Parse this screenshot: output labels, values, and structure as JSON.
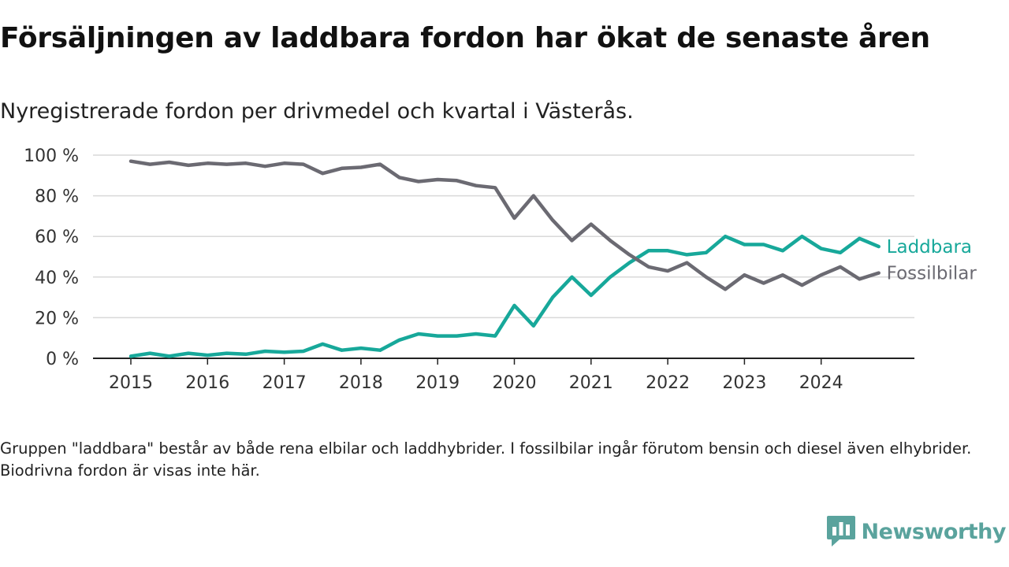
{
  "header": {
    "title": "Försäljningen av laddbara fordon har ökat de senaste åren",
    "subtitle": "Nyregistrerade fordon per drivmedel och kvartal i Västerås."
  },
  "footer": {
    "note": "Gruppen \"laddbara\" består av både rena elbilar och laddhybrider. I fossilbilar ingår förutom bensin och diesel även elhybrider. Biodrivna fordon är visas inte här.",
    "brand": "Newsworthy"
  },
  "colors": {
    "laddbara": "#17a89a",
    "fossilbilar": "#6b6a72",
    "grid": "#d9d9d9",
    "axis": "#222222",
    "brand": "#5aa39d"
  },
  "chart_data": {
    "type": "line",
    "title": "Försäljningen av laddbara fordon har ökat de senaste åren",
    "subtitle": "Nyregistrerade fordon per drivmedel och kvartal i Västerås.",
    "x": [
      "2015-Q1",
      "2015-Q2",
      "2015-Q3",
      "2015-Q4",
      "2016-Q1",
      "2016-Q2",
      "2016-Q3",
      "2016-Q4",
      "2017-Q1",
      "2017-Q2",
      "2017-Q3",
      "2017-Q4",
      "2018-Q1",
      "2018-Q2",
      "2018-Q3",
      "2018-Q4",
      "2019-Q1",
      "2019-Q2",
      "2019-Q3",
      "2019-Q4",
      "2020-Q1",
      "2020-Q2",
      "2020-Q3",
      "2020-Q4",
      "2021-Q1",
      "2021-Q2",
      "2021-Q3",
      "2021-Q4",
      "2022-Q1",
      "2022-Q2",
      "2022-Q3",
      "2022-Q4",
      "2023-Q1",
      "2023-Q2",
      "2023-Q3",
      "2023-Q4",
      "2024-Q1",
      "2024-Q2",
      "2024-Q3",
      "2024-Q4"
    ],
    "x_tick_labels": [
      "2015",
      "2016",
      "2017",
      "2018",
      "2019",
      "2020",
      "2021",
      "2022",
      "2023",
      "2024"
    ],
    "y_tick_labels": [
      "0 %",
      "20 %",
      "40 %",
      "60 %",
      "80 %",
      "100 %"
    ],
    "y_ticks": [
      0,
      20,
      40,
      60,
      80,
      100
    ],
    "ylim": [
      0,
      100
    ],
    "grid": true,
    "legend": "end-of-line labels, right",
    "series": [
      {
        "name": "Laddbara",
        "color": "#17a89a",
        "values": [
          1,
          2.5,
          1,
          2.5,
          1.5,
          2.5,
          2,
          3.5,
          3,
          3.5,
          7,
          4,
          5,
          4,
          9,
          12,
          11,
          11,
          12,
          11,
          26,
          16,
          30,
          40,
          31,
          40,
          47,
          53,
          53,
          51,
          52,
          60,
          56,
          56,
          53,
          60,
          54,
          52,
          59,
          55
        ]
      },
      {
        "name": "Fossilbilar",
        "color": "#6b6a72",
        "values": [
          97,
          95.5,
          96.5,
          95,
          96,
          95.5,
          96,
          94.5,
          96,
          95.5,
          91,
          93.5,
          94,
          95.5,
          89,
          87,
          88,
          87.5,
          85,
          84,
          69,
          80,
          68,
          58,
          66,
          58,
          51,
          45,
          43,
          47,
          40,
          34,
          41,
          37,
          41,
          36,
          41,
          45,
          39,
          42
        ]
      }
    ]
  }
}
